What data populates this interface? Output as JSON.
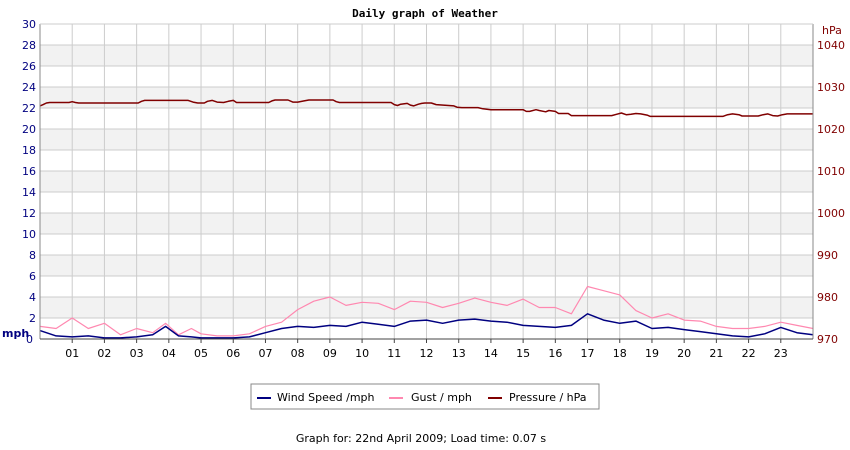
{
  "chart_data": {
    "type": "line",
    "title": "Daily graph of Weather",
    "footer": "Graph for: 22nd April 2009; Load time: 0.07 s",
    "left_axis": {
      "unit_label": "mph",
      "min": 0,
      "max": 30,
      "ticks": [
        "0",
        "2",
        "4",
        "6",
        "8",
        "10",
        "12",
        "14",
        "16",
        "18",
        "20",
        "22",
        "24",
        "26",
        "28",
        "30"
      ]
    },
    "right_axis": {
      "unit_label": "hPa",
      "min": 970,
      "max": 1045,
      "ticks": [
        "970",
        "980",
        "990",
        "1000",
        "1010",
        "1020",
        "1030",
        "1040"
      ]
    },
    "x_axis": {
      "min": 0,
      "max": 24,
      "ticks": [
        "01",
        "02",
        "03",
        "04",
        "05",
        "06",
        "07",
        "08",
        "09",
        "10",
        "11",
        "12",
        "13",
        "14",
        "15",
        "16",
        "17",
        "18",
        "19",
        "20",
        "21",
        "22",
        "23"
      ]
    },
    "grid": true,
    "legend_placement": "bottom-center",
    "colors": {
      "wind": "#000080",
      "gust": "#ff88b0",
      "pressure": "#800000",
      "band": "#f2f2f2",
      "grid": "#cccccc",
      "left_text": "#000080",
      "right_text": "#800000"
    },
    "series": [
      {
        "name": "Wind Speed /mph",
        "key": "wind",
        "axis": "left",
        "x": [
          0,
          0.5,
          1,
          1.5,
          2,
          2.5,
          3,
          3.5,
          3.9,
          4.3,
          4.7,
          5,
          5.5,
          6,
          6.5,
          7,
          7.5,
          8,
          8.5,
          9,
          9.5,
          10,
          10.5,
          11,
          11.5,
          12,
          12.5,
          13,
          13.5,
          14,
          14.5,
          15,
          15.5,
          16,
          16.5,
          17,
          17.5,
          18,
          18.5,
          19,
          19.5,
          20,
          20.5,
          21,
          21.5,
          22,
          22.5,
          23,
          23.5,
          24
        ],
        "values": [
          0.8,
          0.3,
          0.2,
          0.3,
          0.1,
          0.1,
          0.2,
          0.4,
          1.2,
          0.3,
          0.2,
          0.1,
          0.1,
          0.1,
          0.2,
          0.6,
          1.0,
          1.2,
          1.1,
          1.3,
          1.2,
          1.6,
          1.4,
          1.2,
          1.7,
          1.8,
          1.5,
          1.8,
          1.9,
          1.7,
          1.6,
          1.3,
          1.2,
          1.1,
          1.3,
          2.4,
          1.8,
          1.5,
          1.7,
          1.0,
          1.1,
          0.9,
          0.7,
          0.5,
          0.3,
          0.2,
          0.5,
          1.1,
          0.6,
          0.4
        ]
      },
      {
        "name": "Gust / mph",
        "key": "gust",
        "axis": "left",
        "x": [
          0,
          0.5,
          1,
          1.5,
          2,
          2.5,
          3,
          3.5,
          3.9,
          4.3,
          4.7,
          5,
          5.5,
          6,
          6.5,
          7,
          7.5,
          8,
          8.5,
          9,
          9.5,
          10,
          10.5,
          11,
          11.5,
          12,
          12.5,
          13,
          13.5,
          14,
          14.5,
          15,
          15.5,
          16,
          16.5,
          17,
          17.5,
          18,
          18.5,
          19,
          19.5,
          20,
          20.5,
          21,
          21.5,
          22,
          22.5,
          23,
          23.5,
          24
        ],
        "values": [
          1.2,
          1.0,
          2.0,
          1.0,
          1.5,
          0.4,
          1.0,
          0.6,
          1.5,
          0.4,
          1.0,
          0.5,
          0.3,
          0.3,
          0.5,
          1.2,
          1.6,
          2.8,
          3.6,
          4.0,
          3.2,
          3.5,
          3.4,
          2.8,
          3.6,
          3.5,
          3.0,
          3.4,
          3.9,
          3.5,
          3.2,
          3.8,
          3.0,
          3.0,
          2.4,
          5.0,
          4.6,
          4.2,
          2.7,
          2.0,
          2.4,
          1.8,
          1.7,
          1.2,
          1.0,
          1.0,
          1.2,
          1.6,
          1.3,
          1.0
        ]
      },
      {
        "name": "Pressure / hPa",
        "key": "pressure",
        "axis": "right",
        "x": [
          0,
          0.1,
          0.2,
          0.3,
          0.9,
          1.0,
          1.1,
          1.2,
          3.05,
          3.15,
          3.25,
          4.6,
          4.75,
          4.9,
          5.1,
          5.2,
          5.35,
          5.5,
          5.7,
          5.85,
          6.0,
          6.1,
          7.1,
          7.2,
          7.3,
          7.7,
          7.85,
          8.0,
          8.2,
          8.35,
          8.5,
          9.1,
          9.2,
          9.3,
          10.9,
          11.0,
          11.1,
          11.2,
          11.4,
          11.5,
          11.6,
          11.75,
          11.85,
          11.95,
          12.15,
          12.3,
          12.85,
          12.95,
          13.1,
          13.6,
          13.75,
          14.0,
          14.2,
          15.0,
          15.1,
          15.2,
          15.4,
          15.5,
          15.7,
          15.8,
          16.0,
          16.1,
          16.4,
          16.5,
          16.8,
          17.75,
          17.9,
          18.05,
          18.2,
          18.35,
          18.5,
          18.65,
          18.85,
          18.95,
          19.1,
          21.2,
          21.35,
          21.5,
          21.7,
          21.8,
          22.3,
          22.45,
          22.6,
          22.75,
          22.9,
          23.05,
          23.2,
          23.3,
          24
        ],
        "values": [
          1025.5,
          1025.8,
          1026.2,
          1026.3,
          1026.3,
          1026.5,
          1026.3,
          1026.2,
          1026.2,
          1026.6,
          1026.8,
          1026.8,
          1026.4,
          1026.2,
          1026.2,
          1026.6,
          1026.8,
          1026.4,
          1026.3,
          1026.6,
          1026.8,
          1026.3,
          1026.3,
          1026.7,
          1026.9,
          1026.9,
          1026.4,
          1026.4,
          1026.7,
          1026.9,
          1026.9,
          1026.9,
          1026.5,
          1026.3,
          1026.3,
          1025.8,
          1025.6,
          1025.9,
          1026.1,
          1025.7,
          1025.5,
          1025.9,
          1026.1,
          1026.2,
          1026.2,
          1025.8,
          1025.5,
          1025.2,
          1025.1,
          1025.1,
          1024.8,
          1024.6,
          1024.6,
          1024.6,
          1024.2,
          1024.2,
          1024.6,
          1024.4,
          1024.1,
          1024.4,
          1024.2,
          1023.7,
          1023.7,
          1023.2,
          1023.2,
          1023.2,
          1023.5,
          1023.8,
          1023.4,
          1023.5,
          1023.7,
          1023.6,
          1023.3,
          1023.0,
          1023.0,
          1023.0,
          1023.4,
          1023.6,
          1023.4,
          1023.1,
          1023.1,
          1023.4,
          1023.6,
          1023.2,
          1023.1,
          1023.4,
          1023.6,
          1023.6,
          1023.6
        ]
      }
    ]
  }
}
